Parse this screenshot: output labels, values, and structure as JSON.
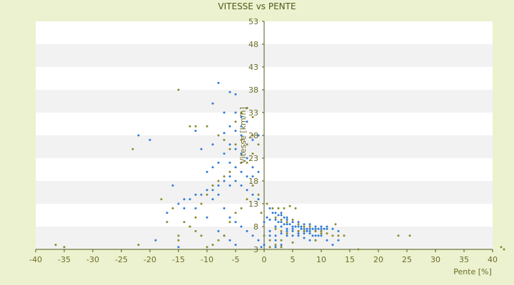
{
  "chart_data": {
    "type": "scatter",
    "title": "VITESSE vs PENTE",
    "xlabel": "Pente [%]",
    "ylabel": "Vitesse [km/h]",
    "xlim": [
      -40,
      40
    ],
    "ylim": [
      3,
      53
    ],
    "x_ticks": [
      -40,
      -35,
      -30,
      -25,
      -20,
      -15,
      -10,
      -5,
      0,
      5,
      10,
      15,
      20,
      25,
      30,
      35,
      40
    ],
    "y_ticks": [
      3,
      8,
      13,
      18,
      23,
      28,
      33,
      38,
      43,
      48,
      53
    ],
    "x_tick_labels": [
      "-40",
      "-35",
      "-30",
      "-25",
      "-20",
      "-15",
      "-10",
      "-5",
      "0",
      "5",
      "10",
      "15",
      "20",
      "25",
      "30",
      "35",
      "40"
    ],
    "y_tick_labels": [
      "3",
      "8",
      "13",
      "18",
      "23",
      "28",
      "33",
      "38",
      "43",
      "48",
      "53"
    ],
    "grid": "horizontal banded",
    "colors": {
      "series_a": "#2e7bd6",
      "series_b": "#8a8a2c",
      "axis": "#4f5a1a",
      "band": "#f2f2f2"
    },
    "series": [
      {
        "color": "#2e7bd6",
        "points": [
          [
            -8,
            39.5
          ],
          [
            -9,
            35
          ],
          [
            -6,
            37.5
          ],
          [
            -5,
            37
          ],
          [
            -3,
            34
          ],
          [
            -4,
            32
          ],
          [
            -6,
            30
          ],
          [
            -7,
            28.5
          ],
          [
            -5,
            29
          ],
          [
            -4,
            28
          ],
          [
            -6,
            26
          ],
          [
            -5,
            25
          ],
          [
            -7,
            24
          ],
          [
            -4,
            24
          ],
          [
            -3,
            23
          ],
          [
            -6,
            22
          ],
          [
            -5,
            21
          ],
          [
            -8,
            22
          ],
          [
            -9,
            21
          ],
          [
            -10,
            20
          ],
          [
            -4,
            20
          ],
          [
            -3,
            19
          ],
          [
            -6,
            19
          ],
          [
            -7,
            18
          ],
          [
            -8,
            17
          ],
          [
            -9,
            16
          ],
          [
            -10,
            16
          ],
          [
            -11,
            15
          ],
          [
            -12,
            15
          ],
          [
            -13,
            14
          ],
          [
            -14,
            14
          ],
          [
            -15,
            13
          ],
          [
            -16,
            17
          ],
          [
            -17,
            11
          ],
          [
            -5,
            18
          ],
          [
            -6,
            17
          ],
          [
            -4,
            17
          ],
          [
            -3,
            16
          ],
          [
            -2,
            15
          ],
          [
            -1,
            14
          ],
          [
            -8,
            15
          ],
          [
            -9,
            14
          ],
          [
            -7,
            12
          ],
          [
            -6,
            10
          ],
          [
            -5,
            9
          ],
          [
            -4,
            8
          ],
          [
            -3,
            7
          ],
          [
            -2,
            6
          ],
          [
            -1,
            5
          ],
          [
            -5,
            4
          ],
          [
            -6,
            5
          ],
          [
            -7,
            6
          ],
          [
            -8,
            7
          ],
          [
            -10,
            10
          ],
          [
            -12,
            12
          ],
          [
            -14,
            12
          ],
          [
            -22,
            28
          ],
          [
            -20,
            27
          ],
          [
            -12,
            29
          ],
          [
            -11,
            25
          ],
          [
            -9,
            26
          ],
          [
            -2,
            27
          ],
          [
            -1,
            28
          ],
          [
            -3,
            31
          ],
          [
            -4,
            30
          ],
          [
            -5,
            33
          ],
          [
            -2,
            21
          ],
          [
            -1,
            20
          ],
          [
            -2,
            19
          ],
          [
            -7,
            33
          ],
          [
            1,
            12
          ],
          [
            1.5,
            11
          ],
          [
            2,
            11
          ],
          [
            2.5,
            10.5
          ],
          [
            3,
            10.5
          ],
          [
            3.5,
            10
          ],
          [
            4,
            10
          ],
          [
            2,
            9.5
          ],
          [
            2.5,
            9
          ],
          [
            3,
            9
          ],
          [
            3.5,
            8.5
          ],
          [
            4,
            8.5
          ],
          [
            4.5,
            8.5
          ],
          [
            5,
            8
          ],
          [
            5.5,
            8
          ],
          [
            6,
            8
          ],
          [
            6.5,
            8
          ],
          [
            7,
            7.5
          ],
          [
            7.5,
            7.5
          ],
          [
            8,
            7.5
          ],
          [
            8.5,
            7.5
          ],
          [
            9,
            7.5
          ],
          [
            9.5,
            7.5
          ],
          [
            10,
            7.5
          ],
          [
            10.5,
            7.5
          ],
          [
            11,
            7.5
          ],
          [
            12,
            7.5
          ],
          [
            13,
            7
          ],
          [
            2,
            8
          ],
          [
            3,
            8
          ],
          [
            4,
            7.5
          ],
          [
            5,
            7.5
          ],
          [
            6,
            7
          ],
          [
            7,
            7
          ],
          [
            8,
            7
          ],
          [
            9,
            6
          ],
          [
            10,
            6
          ],
          [
            11,
            5
          ],
          [
            12,
            4
          ],
          [
            13,
            5
          ],
          [
            5,
            6
          ],
          [
            6,
            6
          ],
          [
            7,
            5.5
          ],
          [
            8,
            5
          ],
          [
            9,
            5
          ],
          [
            1,
            7
          ],
          [
            1,
            6
          ],
          [
            2,
            5
          ],
          [
            3,
            4
          ],
          [
            2,
            3.5
          ],
          [
            0,
            9
          ],
          [
            0.5,
            10
          ],
          [
            1,
            9.5
          ],
          [
            -0.5,
            3.5
          ],
          [
            0,
            4
          ],
          [
            -19,
            5
          ],
          [
            -15,
            3.5
          ],
          [
            3,
            11
          ],
          [
            4,
            9.5
          ],
          [
            5,
            9
          ],
          [
            6,
            9
          ],
          [
            7,
            8.5
          ],
          [
            8,
            8.5
          ],
          [
            9,
            8
          ],
          [
            10,
            8
          ],
          [
            11,
            8
          ],
          [
            4,
            7
          ],
          [
            5,
            7
          ],
          [
            6,
            6.5
          ],
          [
            7,
            6.5
          ],
          [
            8,
            6.5
          ],
          [
            9,
            7
          ],
          [
            10,
            7
          ],
          [
            3,
            6.5
          ],
          [
            4,
            6
          ],
          [
            2,
            6
          ],
          [
            6.5,
            7.5
          ],
          [
            7.5,
            7
          ],
          [
            8.5,
            6
          ],
          [
            9.5,
            6
          ]
        ]
      },
      {
        "color": "#8a8a2c",
        "points": [
          [
            -15,
            38
          ],
          [
            -13,
            30
          ],
          [
            -12,
            30
          ],
          [
            -10,
            30
          ],
          [
            -8,
            28
          ],
          [
            -7,
            27
          ],
          [
            -5,
            31
          ],
          [
            -4,
            33
          ],
          [
            -3,
            34
          ],
          [
            -2,
            32
          ],
          [
            -1,
            26
          ],
          [
            -2,
            24
          ],
          [
            -3,
            22
          ],
          [
            -6,
            20
          ],
          [
            -7,
            19
          ],
          [
            -8,
            18
          ],
          [
            -9,
            17
          ],
          [
            -10,
            15
          ],
          [
            -11,
            13
          ],
          [
            -12,
            10
          ],
          [
            -13,
            8
          ],
          [
            -14,
            9
          ],
          [
            -15,
            6
          ],
          [
            -16,
            12
          ],
          [
            -17,
            9
          ],
          [
            -18,
            14
          ],
          [
            -23,
            25
          ],
          [
            -2,
            17
          ],
          [
            -1,
            15
          ],
          [
            -3,
            14
          ],
          [
            -4,
            12
          ],
          [
            -5,
            11
          ],
          [
            -6,
            9
          ],
          [
            -7,
            6
          ],
          [
            -8,
            5
          ],
          [
            -9,
            4
          ],
          [
            -10,
            3.5
          ],
          [
            -11,
            6
          ],
          [
            -12,
            7
          ],
          [
            -13,
            8
          ],
          [
            -15,
            5
          ],
          [
            -22,
            4
          ],
          [
            -35,
            3.5
          ],
          [
            -36.5,
            4
          ],
          [
            -2,
            28
          ],
          [
            -4,
            27
          ],
          [
            -5,
            26
          ],
          [
            -6,
            25
          ],
          [
            -3,
            26
          ],
          [
            -4,
            22
          ],
          [
            0.5,
            13
          ],
          [
            1.5,
            12
          ],
          [
            2.5,
            12
          ],
          [
            3.5,
            12
          ],
          [
            4.5,
            12.5
          ],
          [
            5.5,
            12
          ],
          [
            2,
            10
          ],
          [
            3,
            9.5
          ],
          [
            4,
            9
          ],
          [
            5,
            9.5
          ],
          [
            6,
            8.5
          ],
          [
            7,
            8
          ],
          [
            8,
            8
          ],
          [
            9,
            7
          ],
          [
            10,
            7
          ],
          [
            11,
            6.5
          ],
          [
            12,
            6
          ],
          [
            13,
            6
          ],
          [
            14,
            6
          ],
          [
            12.5,
            8.5
          ],
          [
            0,
            6
          ],
          [
            1,
            5
          ],
          [
            2,
            4
          ],
          [
            3,
            3.5
          ],
          [
            1,
            3.5
          ],
          [
            2,
            7.5
          ],
          [
            3,
            7
          ],
          [
            4,
            6.5
          ],
          [
            6,
            7
          ],
          [
            7,
            7
          ],
          [
            16.5,
            3
          ],
          [
            23.5,
            6
          ],
          [
            25.5,
            6
          ],
          [
            41.5,
            3.5
          ],
          [
            42,
            3
          ],
          [
            9,
            5
          ],
          [
            10,
            6.5
          ],
          [
            3,
            5
          ],
          [
            5,
            4.5
          ],
          [
            -0.5,
            11
          ]
        ]
      }
    ]
  }
}
